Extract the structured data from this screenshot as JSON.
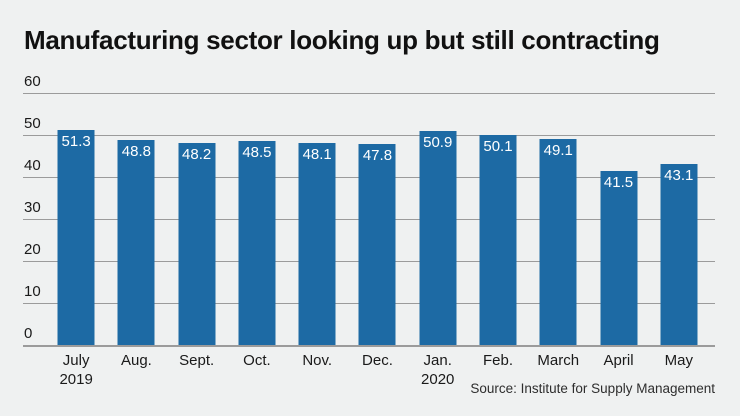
{
  "title": "Manufacturing sector looking up but still contracting",
  "source": "Source: Institute for Supply Management",
  "colors": {
    "background": "#eff1f1",
    "bar": "#1d6aa4",
    "gridline": "#9b9b9b",
    "axis_text": "#1a1a1a",
    "value_label": "#ffffff",
    "title_text": "#111111",
    "source_text": "#2e2e2e"
  },
  "chart_data": {
    "type": "bar",
    "title": "Manufacturing sector looking up but still contracting",
    "categories": [
      "July\n2019",
      "Aug.",
      "Sept.",
      "Oct.",
      "Nov.",
      "Dec.",
      "Jan.\n2020",
      "Feb.",
      "March",
      "April",
      "May"
    ],
    "values": [
      51.3,
      48.8,
      48.2,
      48.5,
      48.1,
      47.8,
      50.9,
      50.1,
      49.1,
      41.5,
      43.1
    ],
    "value_labels": [
      "51.3",
      "48.8",
      "48.2",
      "48.5",
      "48.1",
      "47.8",
      "50.9",
      "50.1",
      "49.1",
      "41.5",
      "43.1"
    ],
    "xlabel": "",
    "ylabel": "",
    "ylim": [
      0,
      60
    ],
    "yticks": [
      60,
      50,
      40,
      30,
      20,
      10,
      0
    ],
    "grid": true,
    "legend": false,
    "source": "Source: Institute for Supply Management"
  }
}
